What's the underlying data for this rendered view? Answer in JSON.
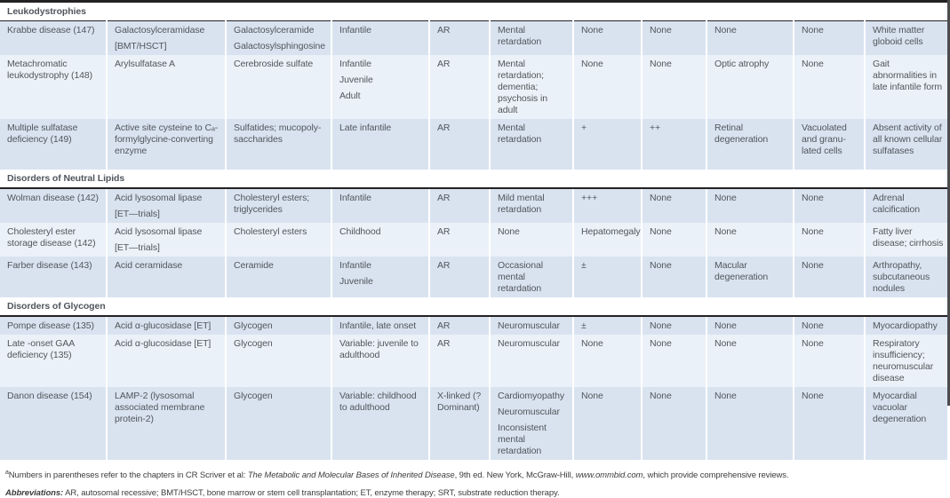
{
  "table": {
    "sections": [
      {
        "title": "Leukodystrophies",
        "rows": [
          {
            "cells": [
              [
                "Krabbe disease (147)"
              ],
              [
                "Galactosylceramidase",
                "[BMT/HSCT]"
              ],
              [
                "Galactosylceramide",
                "Galactosylsphingosine"
              ],
              [
                "Infantile"
              ],
              [
                "AR"
              ],
              [
                "Mental retardation"
              ],
              [
                "None"
              ],
              [
                "None"
              ],
              [
                "None"
              ],
              [
                "None"
              ],
              [
                "White matter globoid cells"
              ]
            ]
          },
          {
            "cells": [
              [
                "Metachromatic leukodystrophy (148)"
              ],
              [
                "Arylsulfatase A"
              ],
              [
                "Cerebroside sulfate"
              ],
              [
                "Infantile",
                "Juvenile",
                "Adult"
              ],
              [
                "AR"
              ],
              [
                "Mental retardation; dementia; psychosis in adult"
              ],
              [
                "None"
              ],
              [
                "None"
              ],
              [
                "Optic atrophy"
              ],
              [
                "None"
              ],
              [
                "Gait abnormalities in late infantile form"
              ]
            ]
          },
          {
            "cells": [
              [
                "Multiple sulfatase deficiency (149)"
              ],
              [
                "Active site cysteine to Cₐ-formylglycine-converting enzyme"
              ],
              [
                "Sulfatides; mucopoly-saccharides"
              ],
              [
                "Late infantile"
              ],
              [
                "AR"
              ],
              [
                "Mental retardation"
              ],
              [
                "+"
              ],
              [
                "++"
              ],
              [
                "Retinal degeneration"
              ],
              [
                "Vacuolated and granu-lated cells"
              ],
              [
                "Absent activity of all known cellular sulfatases"
              ]
            ]
          }
        ]
      },
      {
        "title": "Disorders of Neutral Lipids",
        "rows": [
          {
            "cells": [
              [
                "Wolman disease (142)"
              ],
              [
                "Acid lysosomal lipase",
                "[ET—trials]"
              ],
              [
                "Cholesteryl esters; triglycerides"
              ],
              [
                "Infantile"
              ],
              [
                "AR"
              ],
              [
                "Mild mental retardation"
              ],
              [
                "+++"
              ],
              [
                "None"
              ],
              [
                "None"
              ],
              [
                "None"
              ],
              [
                "Adrenal calcification"
              ]
            ]
          },
          {
            "cells": [
              [
                "Cholesteryl ester storage disease (142)"
              ],
              [
                "Acid lysosomal lipase",
                "[ET—trials]"
              ],
              [
                "Cholesteryl esters"
              ],
              [
                "Childhood"
              ],
              [
                "AR"
              ],
              [
                "None"
              ],
              [
                "Hepatomegaly"
              ],
              [
                "None"
              ],
              [
                "None"
              ],
              [
                "None"
              ],
              [
                "Fatty liver disease; cirrhosis"
              ]
            ]
          },
          {
            "cells": [
              [
                "Farber disease (143)"
              ],
              [
                "Acid ceramidase"
              ],
              [
                "Ceramide"
              ],
              [
                "Infantile",
                "Juvenile"
              ],
              [
                "AR"
              ],
              [
                "Occasional mental retardation"
              ],
              [
                "±"
              ],
              [
                "None"
              ],
              [
                "Macular degeneration"
              ],
              [
                "None"
              ],
              [
                "Arthropathy, subcutaneous nodules"
              ]
            ]
          }
        ]
      },
      {
        "title": "Disorders of Glycogen",
        "rows": [
          {
            "cells": [
              [
                "Pompe disease (135)"
              ],
              [
                "Acid α-glucosidase [ET]"
              ],
              [
                "Glycogen"
              ],
              [
                "Infantile, late onset"
              ],
              [
                "AR"
              ],
              [
                "Neuromuscular"
              ],
              [
                "±"
              ],
              [
                "None"
              ],
              [
                "None"
              ],
              [
                "None"
              ],
              [
                "Myocardiopathy"
              ]
            ]
          },
          {
            "cells": [
              [
                "Late -onset GAA deficiency (135)"
              ],
              [
                "Acid α-glucosidase [ET]"
              ],
              [
                "Glycogen"
              ],
              [
                "Variable: juvenile to adulthood"
              ],
              [
                "AR"
              ],
              [
                "Neuromuscular"
              ],
              [
                "None"
              ],
              [
                "None"
              ],
              [
                "None"
              ],
              [
                "None"
              ],
              [
                "Respiratory insufficiency; neuromuscular disease"
              ]
            ]
          },
          {
            "cells": [
              [
                "Danon disease (154)"
              ],
              [
                "LAMP-2 (lysosomal associated membrane protein-2)"
              ],
              [
                "Glycogen"
              ],
              [
                "Variable: childhood to adulthood"
              ],
              [
                "X-linked (?Dominant)"
              ],
              [
                "Cardiomyopathy",
                "Neuromuscular",
                "Inconsistent mental retardation"
              ],
              [
                "None"
              ],
              [
                "None"
              ],
              [
                "None"
              ],
              [
                "None"
              ],
              [
                "Myocardial vacuolar degeneration"
              ]
            ]
          }
        ]
      }
    ]
  },
  "footnotes": {
    "note1": {
      "marker": "a",
      "pre": "Numbers in parentheses refer to the chapters in CR Scriver et al: ",
      "italic1": "The Metabolic and Molecular Bases of Inherited Disease",
      "mid": ", 9th ed. New York, McGraw-Hill, ",
      "italic2": "www.ommbid.com",
      "post": ", which provide comprehensive reviews."
    },
    "note2": {
      "label": "Abbreviations:",
      "text": " AR, autosomal recessive; BMT/HSCT, bone marrow or stem cell transplantation; ET, enzyme therapy; SRT, substrate reduction therapy."
    }
  }
}
